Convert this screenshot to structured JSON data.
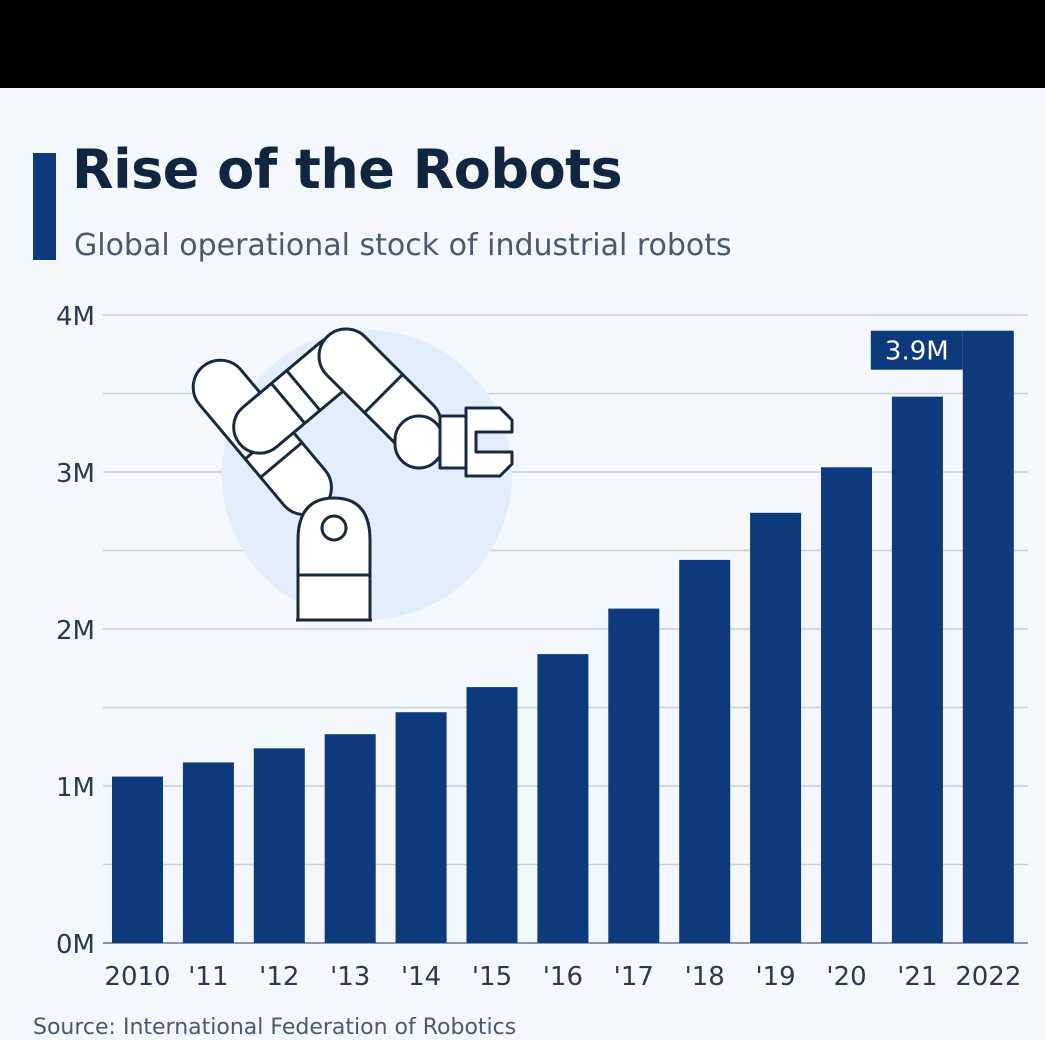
{
  "header": {
    "title": "Rise of the Robots",
    "subtitle": "Global operational stock of industrial robots"
  },
  "footer": {
    "source": "Source: International Federation of Robotics"
  },
  "colors": {
    "bar": "#0c3a7c",
    "accent": "#0c3a7c",
    "grid": "#c9d1db",
    "axis_text": "#2a3a4e",
    "illustration_circle": "#e3edfb",
    "illustration_stroke": "#1a2a3e"
  },
  "chart_data": {
    "type": "bar",
    "title": "Rise of the Robots",
    "subtitle": "Global operational stock of industrial robots",
    "categories": [
      "2010",
      "'11",
      "'12",
      "'13",
      "'14",
      "'15",
      "'16",
      "'17",
      "'18",
      "'19",
      "'20",
      "'21",
      "2022"
    ],
    "values": [
      1.06,
      1.15,
      1.24,
      1.33,
      1.47,
      1.63,
      1.84,
      2.13,
      2.44,
      2.74,
      3.03,
      3.48,
      3.9
    ],
    "unit": "M",
    "ylim": [
      0,
      4
    ],
    "yticks": [
      0,
      1,
      2,
      3,
      4
    ],
    "ytick_labels": [
      "0M",
      "1M",
      "2M",
      "3M",
      "4M"
    ],
    "minor_gridlines": [
      0.5,
      1.5,
      2.5,
      3.5
    ],
    "grid": true,
    "xlabel": "",
    "ylabel": "",
    "annotation": {
      "category": "2022",
      "label": "3.9M"
    },
    "illustration": "robot-arm-icon"
  }
}
